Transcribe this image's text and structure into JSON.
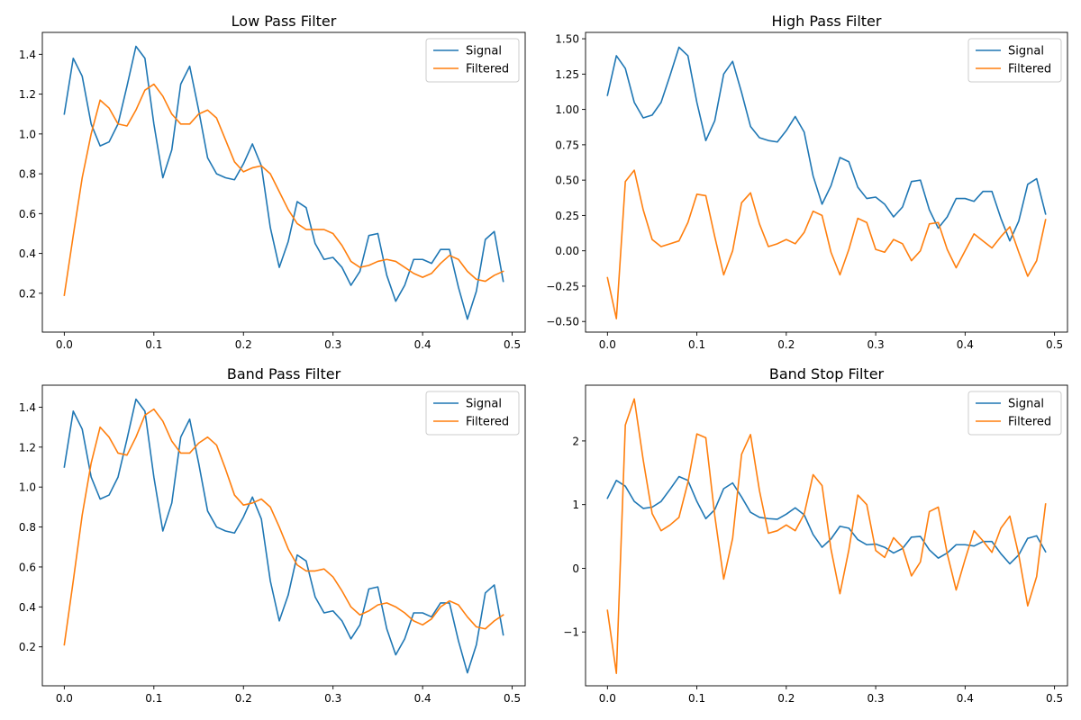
{
  "chart_data": [
    {
      "type": "line",
      "title": "Low Pass Filter",
      "xlabel": "",
      "ylabel": "",
      "xlim": [
        -0.0245,
        0.5145
      ],
      "ylim": [
        0.005,
        1.51
      ],
      "xticks": [
        0.0,
        0.1,
        0.2,
        0.3,
        0.4,
        0.5
      ],
      "xtick_labels": [
        "0.0",
        "0.1",
        "0.2",
        "0.3",
        "0.4",
        "0.5"
      ],
      "yticks": [
        0.2,
        0.4,
        0.6,
        0.8,
        1.0,
        1.2,
        1.4
      ],
      "ytick_labels": [
        "0.2",
        "0.4",
        "0.6",
        "0.8",
        "1.0",
        "1.2",
        "1.4"
      ],
      "legend": "top-right",
      "grid": false,
      "x": [
        0.0,
        0.01,
        0.02,
        0.03,
        0.04,
        0.05,
        0.06,
        0.07,
        0.08,
        0.09,
        0.1,
        0.11,
        0.12,
        0.13,
        0.14,
        0.15,
        0.16,
        0.17,
        0.18,
        0.19,
        0.2,
        0.21,
        0.22,
        0.23,
        0.24,
        0.25,
        0.26,
        0.27,
        0.28,
        0.29,
        0.3,
        0.31,
        0.32,
        0.33,
        0.34,
        0.35,
        0.36,
        0.37,
        0.38,
        0.39,
        0.4,
        0.41,
        0.42,
        0.43,
        0.44,
        0.45,
        0.46,
        0.47,
        0.48,
        0.49
      ],
      "series": [
        {
          "name": "Signal",
          "color": "#1f77b4",
          "values": [
            1.1,
            1.38,
            1.29,
            1.05,
            0.94,
            0.96,
            1.05,
            1.24,
            1.44,
            1.38,
            1.05,
            0.78,
            0.92,
            1.25,
            1.34,
            1.12,
            0.88,
            0.8,
            0.78,
            0.77,
            0.85,
            0.95,
            0.84,
            0.53,
            0.33,
            0.46,
            0.66,
            0.63,
            0.45,
            0.37,
            0.38,
            0.33,
            0.24,
            0.31,
            0.49,
            0.5,
            0.29,
            0.16,
            0.24,
            0.37,
            0.37,
            0.35,
            0.42,
            0.42,
            0.23,
            0.07,
            0.21,
            0.47,
            0.51,
            0.26
          ]
        },
        {
          "name": "Filtered",
          "color": "#ff7f0e",
          "values": [
            0.19,
            0.49,
            0.78,
            1.0,
            1.17,
            1.13,
            1.05,
            1.04,
            1.12,
            1.22,
            1.25,
            1.19,
            1.1,
            1.05,
            1.05,
            1.1,
            1.12,
            1.08,
            0.97,
            0.86,
            0.81,
            0.83,
            0.84,
            0.8,
            0.71,
            0.62,
            0.55,
            0.52,
            0.52,
            0.52,
            0.5,
            0.44,
            0.36,
            0.33,
            0.34,
            0.36,
            0.37,
            0.36,
            0.33,
            0.3,
            0.28,
            0.3,
            0.35,
            0.39,
            0.37,
            0.31,
            0.27,
            0.26,
            0.29,
            0.31
          ]
        }
      ]
    },
    {
      "type": "line",
      "title": "High Pass Filter",
      "xlabel": "",
      "ylabel": "",
      "xlim": [
        -0.0245,
        0.5145
      ],
      "ylim": [
        -0.575,
        1.545
      ],
      "xticks": [
        0.0,
        0.1,
        0.2,
        0.3,
        0.4,
        0.5
      ],
      "xtick_labels": [
        "0.0",
        "0.1",
        "0.2",
        "0.3",
        "0.4",
        "0.5"
      ],
      "yticks": [
        -0.5,
        -0.25,
        0.0,
        0.25,
        0.5,
        0.75,
        1.0,
        1.25,
        1.5
      ],
      "ytick_labels": [
        "−0.50",
        "−0.25",
        "0.00",
        "0.25",
        "0.50",
        "0.75",
        "1.00",
        "1.25",
        "1.50"
      ],
      "legend": "top-right",
      "grid": false,
      "x": [
        0.0,
        0.01,
        0.02,
        0.03,
        0.04,
        0.05,
        0.06,
        0.07,
        0.08,
        0.09,
        0.1,
        0.11,
        0.12,
        0.13,
        0.14,
        0.15,
        0.16,
        0.17,
        0.18,
        0.19,
        0.2,
        0.21,
        0.22,
        0.23,
        0.24,
        0.25,
        0.26,
        0.27,
        0.28,
        0.29,
        0.3,
        0.31,
        0.32,
        0.33,
        0.34,
        0.35,
        0.36,
        0.37,
        0.38,
        0.39,
        0.4,
        0.41,
        0.42,
        0.43,
        0.44,
        0.45,
        0.46,
        0.47,
        0.48,
        0.49
      ],
      "series": [
        {
          "name": "Signal",
          "color": "#1f77b4",
          "values": [
            1.1,
            1.38,
            1.29,
            1.05,
            0.94,
            0.96,
            1.05,
            1.24,
            1.44,
            1.38,
            1.05,
            0.78,
            0.92,
            1.25,
            1.34,
            1.12,
            0.88,
            0.8,
            0.78,
            0.77,
            0.85,
            0.95,
            0.84,
            0.53,
            0.33,
            0.46,
            0.66,
            0.63,
            0.45,
            0.37,
            0.38,
            0.33,
            0.24,
            0.31,
            0.49,
            0.5,
            0.29,
            0.16,
            0.24,
            0.37,
            0.37,
            0.35,
            0.42,
            0.42,
            0.23,
            0.07,
            0.21,
            0.47,
            0.51,
            0.26
          ]
        },
        {
          "name": "Filtered",
          "color": "#ff7f0e",
          "values": [
            -0.19,
            -0.48,
            0.49,
            0.57,
            0.29,
            0.08,
            0.03,
            0.05,
            0.07,
            0.2,
            0.4,
            0.39,
            0.1,
            -0.17,
            0.0,
            0.34,
            0.41,
            0.19,
            0.03,
            0.05,
            0.08,
            0.05,
            0.13,
            0.28,
            0.25,
            -0.01,
            -0.17,
            0.01,
            0.23,
            0.2,
            0.01,
            -0.01,
            0.08,
            0.05,
            -0.07,
            0.0,
            0.19,
            0.2,
            0.01,
            -0.12,
            0.0,
            0.12,
            0.07,
            0.02,
            0.1,
            0.17,
            -0.01,
            -0.18,
            -0.07,
            0.22
          ]
        }
      ]
    },
    {
      "type": "line",
      "title": "Band Pass Filter",
      "xlabel": "",
      "ylabel": "",
      "xlim": [
        -0.0245,
        0.5145
      ],
      "ylim": [
        0.005,
        1.51
      ],
      "xticks": [
        0.0,
        0.1,
        0.2,
        0.3,
        0.4,
        0.5
      ],
      "xtick_labels": [
        "0.0",
        "0.1",
        "0.2",
        "0.3",
        "0.4",
        "0.5"
      ],
      "yticks": [
        0.2,
        0.4,
        0.6,
        0.8,
        1.0,
        1.2,
        1.4
      ],
      "ytick_labels": [
        "0.2",
        "0.4",
        "0.6",
        "0.8",
        "1.0",
        "1.2",
        "1.4"
      ],
      "legend": "top-right",
      "grid": false,
      "x": [
        0.0,
        0.01,
        0.02,
        0.03,
        0.04,
        0.05,
        0.06,
        0.07,
        0.08,
        0.09,
        0.1,
        0.11,
        0.12,
        0.13,
        0.14,
        0.15,
        0.16,
        0.17,
        0.18,
        0.19,
        0.2,
        0.21,
        0.22,
        0.23,
        0.24,
        0.25,
        0.26,
        0.27,
        0.28,
        0.29,
        0.3,
        0.31,
        0.32,
        0.33,
        0.34,
        0.35,
        0.36,
        0.37,
        0.38,
        0.39,
        0.4,
        0.41,
        0.42,
        0.43,
        0.44,
        0.45,
        0.46,
        0.47,
        0.48,
        0.49
      ],
      "series": [
        {
          "name": "Signal",
          "color": "#1f77b4",
          "values": [
            1.1,
            1.38,
            1.29,
            1.05,
            0.94,
            0.96,
            1.05,
            1.24,
            1.44,
            1.38,
            1.05,
            0.78,
            0.92,
            1.25,
            1.34,
            1.12,
            0.88,
            0.8,
            0.78,
            0.77,
            0.85,
            0.95,
            0.84,
            0.53,
            0.33,
            0.46,
            0.66,
            0.63,
            0.45,
            0.37,
            0.38,
            0.33,
            0.24,
            0.31,
            0.49,
            0.5,
            0.29,
            0.16,
            0.24,
            0.37,
            0.37,
            0.35,
            0.42,
            0.42,
            0.23,
            0.07,
            0.21,
            0.47,
            0.51,
            0.26
          ]
        },
        {
          "name": "Filtered",
          "color": "#ff7f0e",
          "values": [
            0.21,
            0.53,
            0.86,
            1.12,
            1.3,
            1.25,
            1.17,
            1.16,
            1.25,
            1.36,
            1.39,
            1.33,
            1.23,
            1.17,
            1.17,
            1.22,
            1.25,
            1.21,
            1.09,
            0.96,
            0.91,
            0.92,
            0.94,
            0.9,
            0.8,
            0.69,
            0.61,
            0.58,
            0.58,
            0.59,
            0.55,
            0.48,
            0.4,
            0.36,
            0.38,
            0.41,
            0.42,
            0.4,
            0.37,
            0.33,
            0.31,
            0.34,
            0.4,
            0.43,
            0.41,
            0.35,
            0.3,
            0.29,
            0.33,
            0.36
          ]
        }
      ]
    },
    {
      "type": "line",
      "title": "Band Stop Filter",
      "xlabel": "",
      "ylabel": "",
      "xlim": [
        -0.0245,
        0.5145
      ],
      "ylim": [
        -1.845,
        2.875
      ],
      "xticks": [
        0.0,
        0.1,
        0.2,
        0.3,
        0.4,
        0.5
      ],
      "xtick_labels": [
        "0.0",
        "0.1",
        "0.2",
        "0.3",
        "0.4",
        "0.5"
      ],
      "yticks": [
        -1,
        0,
        1,
        2
      ],
      "ytick_labels": [
        "−1",
        "0",
        "1",
        "2"
      ],
      "legend": "top-right",
      "grid": false,
      "x": [
        0.0,
        0.01,
        0.02,
        0.03,
        0.04,
        0.05,
        0.06,
        0.07,
        0.08,
        0.09,
        0.1,
        0.11,
        0.12,
        0.13,
        0.14,
        0.15,
        0.16,
        0.17,
        0.18,
        0.19,
        0.2,
        0.21,
        0.22,
        0.23,
        0.24,
        0.25,
        0.26,
        0.27,
        0.28,
        0.29,
        0.3,
        0.31,
        0.32,
        0.33,
        0.34,
        0.35,
        0.36,
        0.37,
        0.38,
        0.39,
        0.4,
        0.41,
        0.42,
        0.43,
        0.44,
        0.45,
        0.46,
        0.47,
        0.48,
        0.49
      ],
      "series": [
        {
          "name": "Signal",
          "color": "#1f77b4",
          "values": [
            1.1,
            1.38,
            1.29,
            1.05,
            0.94,
            0.96,
            1.05,
            1.24,
            1.44,
            1.38,
            1.05,
            0.78,
            0.92,
            1.25,
            1.34,
            1.12,
            0.88,
            0.8,
            0.78,
            0.77,
            0.85,
            0.95,
            0.84,
            0.53,
            0.33,
            0.46,
            0.66,
            0.63,
            0.45,
            0.37,
            0.38,
            0.33,
            0.24,
            0.31,
            0.49,
            0.5,
            0.29,
            0.16,
            0.24,
            0.37,
            0.37,
            0.35,
            0.42,
            0.42,
            0.23,
            0.07,
            0.21,
            0.47,
            0.51,
            0.26
          ]
        },
        {
          "name": "Filtered",
          "color": "#ff7f0e",
          "values": [
            -0.66,
            -1.65,
            2.25,
            2.66,
            1.7,
            0.86,
            0.59,
            0.68,
            0.8,
            1.35,
            2.11,
            2.05,
            0.83,
            -0.17,
            0.47,
            1.79,
            2.1,
            1.22,
            0.55,
            0.59,
            0.68,
            0.59,
            0.85,
            1.47,
            1.3,
            0.3,
            -0.4,
            0.29,
            1.15,
            1.0,
            0.28,
            0.17,
            0.48,
            0.33,
            -0.12,
            0.1,
            0.89,
            0.96,
            0.23,
            -0.34,
            0.14,
            0.59,
            0.43,
            0.25,
            0.63,
            0.82,
            0.21,
            -0.59,
            -0.13,
            1.01
          ]
        }
      ]
    }
  ]
}
